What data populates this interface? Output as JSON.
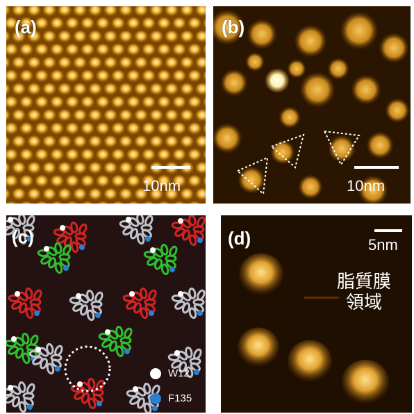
{
  "panels": {
    "a": {
      "label": "(a)",
      "scale_label": "10nm"
    },
    "b": {
      "label": "(b)",
      "scale_label": "10nm"
    },
    "c": {
      "label": "(c)",
      "legend": [
        {
          "name": "W12",
          "color": "#ffffff"
        },
        {
          "name": "F135",
          "color": "#2a7fd1"
        }
      ]
    },
    "d": {
      "label": "(d)",
      "scale_label": "5nm",
      "region_line1": "脂質膜",
      "region_line2": "領域"
    }
  },
  "colors": {
    "afm_dark": "#1e1000",
    "afm_mid": "#8a5200",
    "afm_bright": "#f0b33a",
    "afm_highlight": "#fff2b0",
    "protein_red": "#d42424",
    "protein_green": "#2ec02e",
    "protein_gray": "#bfc3cc",
    "panel_c_bg": "#241212"
  }
}
